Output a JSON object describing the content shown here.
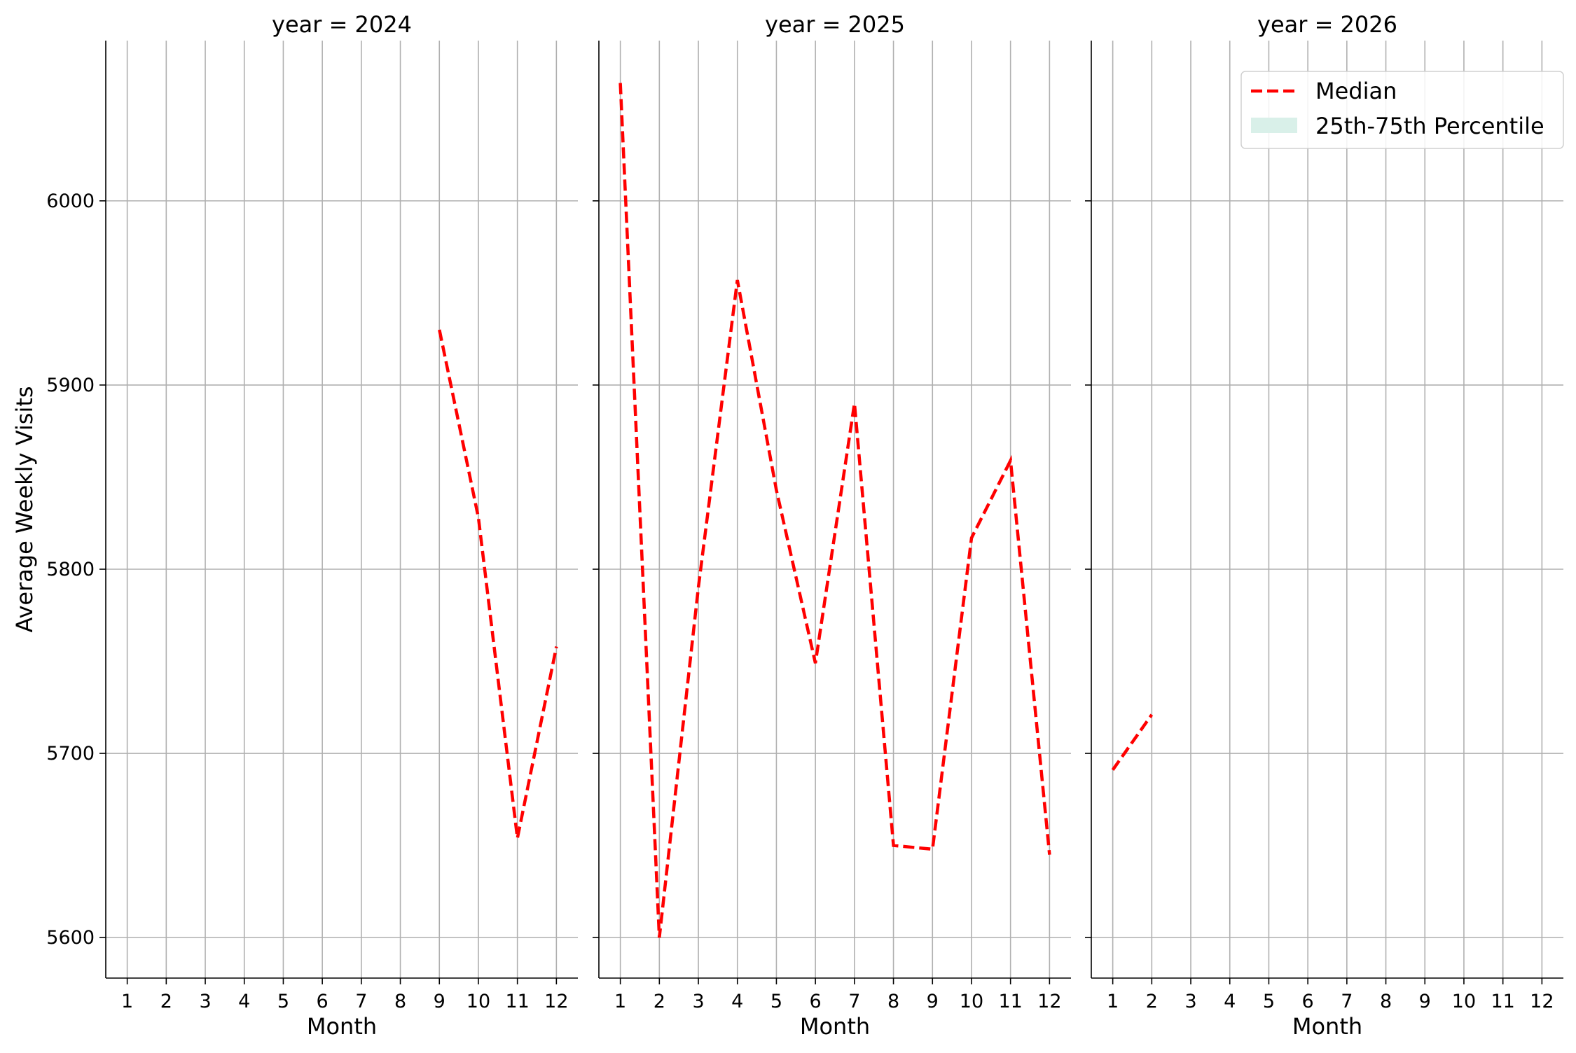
{
  "chart_data": {
    "type": "line",
    "layout": "facet-columns",
    "ylabel": "Average Weekly Visits",
    "ylim": [
      5578,
      6087
    ],
    "yticks": [
      5600,
      5700,
      5800,
      5900,
      6000
    ],
    "xlabel": "Month",
    "xticks": [
      1,
      2,
      3,
      4,
      5,
      6,
      7,
      8,
      9,
      10,
      11,
      12
    ],
    "grid": true,
    "legend": {
      "placement": "top-right of last panel",
      "entries": [
        {
          "label": "Median",
          "color": "#ff0000",
          "style": "dashed"
        },
        {
          "label": "25th-75th Percentile",
          "color": "#d9f0e9",
          "style": "patch"
        }
      ]
    },
    "panels": [
      {
        "title": "year = 2024",
        "median": {
          "x": [
            9,
            10,
            11,
            12
          ],
          "y": [
            5930,
            5828,
            5654,
            5758
          ]
        }
      },
      {
        "title": "year = 2025",
        "median": {
          "x": [
            1,
            2,
            3,
            4,
            5,
            6,
            7,
            8,
            9,
            10,
            11,
            12
          ],
          "y": [
            6064,
            5600,
            5790,
            5957,
            5843,
            5749,
            5890,
            5650,
            5648,
            5817,
            5859,
            5645
          ]
        }
      },
      {
        "title": "year = 2026",
        "median": {
          "x": [
            1,
            2
          ],
          "y": [
            5691,
            5721
          ]
        }
      }
    ]
  }
}
